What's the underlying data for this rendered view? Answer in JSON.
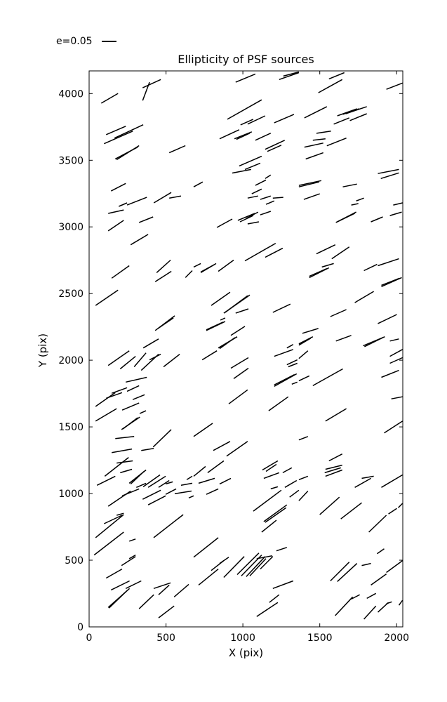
{
  "figure": {
    "background": "#ffffff"
  },
  "legend": {
    "label": "e=0.05"
  },
  "colors": {
    "line": "#000000",
    "frame": "#000000",
    "text": "#000000"
  },
  "chart_data": {
    "type": "line",
    "subtype": "whisker-segment-field",
    "title": "Ellipticity of PSF sources",
    "xlabel": "X (pix)",
    "ylabel": "Y (pix)",
    "xlim": [
      0,
      2040
    ],
    "ylim": [
      0,
      4170
    ],
    "xticks": [
      0,
      500,
      1000,
      1500,
      2000
    ],
    "yticks": [
      0,
      500,
      1000,
      1500,
      2000,
      2500,
      3000,
      3500,
      4000
    ],
    "grid": false,
    "legend_position": "upper-left-outside",
    "legend_scale_label": "e=0.05",
    "segments": [
      [
        79,
        3928,
        188,
        4001
      ],
      [
        348,
        3948,
        393,
        4085
      ],
      [
        348,
        4043,
        466,
        4105
      ],
      [
        111,
        3692,
        238,
        3755
      ],
      [
        165,
        3666,
        352,
        3766
      ],
      [
        97,
        3624,
        284,
        3718
      ],
      [
        179,
        3504,
        325,
        3609
      ],
      [
        170,
        3510,
        316,
        3598
      ],
      [
        521,
        3556,
        626,
        3609
      ],
      [
        143,
        3269,
        238,
        3326
      ],
      [
        193,
        3154,
        247,
        3180
      ],
      [
        247,
        3164,
        375,
        3222
      ],
      [
        421,
        3180,
        534,
        3258
      ],
      [
        521,
        3216,
        598,
        3232
      ],
      [
        953,
        4085,
        1081,
        4147
      ],
      [
        1236,
        4105,
        1364,
        4157
      ],
      [
        1263,
        4131,
        1364,
        4162
      ],
      [
        899,
        3807,
        1122,
        3953
      ],
      [
        985,
        3765,
        1067,
        3807
      ],
      [
        1031,
        3771,
        1145,
        3833
      ],
      [
        1204,
        3781,
        1332,
        3844
      ],
      [
        849,
        3661,
        976,
        3729
      ],
      [
        945,
        3661,
        1058,
        3713
      ],
      [
        958,
        3656,
        1045,
        3703
      ],
      [
        1081,
        3650,
        1181,
        3703
      ],
      [
        1145,
        3582,
        1272,
        3650
      ],
      [
        1159,
        3566,
        1250,
        3613
      ],
      [
        976,
        3457,
        1122,
        3530
      ],
      [
        1013,
        3431,
        1113,
        3478
      ],
      [
        931,
        3404,
        1054,
        3431
      ],
      [
        1145,
        3363,
        1181,
        3389
      ],
      [
        1081,
        3311,
        1150,
        3352
      ],
      [
        680,
        3300,
        739,
        3337
      ],
      [
        1058,
        3248,
        1122,
        3284
      ],
      [
        1031,
        3216,
        1099,
        3232
      ],
      [
        1113,
        3206,
        1181,
        3232
      ],
      [
        1195,
        3216,
        1263,
        3222
      ],
      [
        1150,
        3169,
        1204,
        3195
      ],
      [
        1560,
        4110,
        1660,
        4157
      ],
      [
        1491,
        4006,
        1646,
        4105
      ],
      [
        1933,
        4032,
        2038,
        4079
      ],
      [
        1400,
        3818,
        1546,
        3902
      ],
      [
        1614,
        3833,
        1742,
        3886
      ],
      [
        1669,
        3849,
        1806,
        3902
      ],
      [
        1650,
        3844,
        1755,
        3886
      ],
      [
        1591,
        3771,
        1692,
        3818
      ],
      [
        1696,
        3797,
        1806,
        3849
      ],
      [
        1478,
        3702,
        1573,
        3718
      ],
      [
        1455,
        3650,
        1537,
        3661
      ],
      [
        1400,
        3598,
        1523,
        3629
      ],
      [
        1546,
        3608,
        1673,
        3666
      ],
      [
        1409,
        3509,
        1523,
        3556
      ],
      [
        1878,
        3400,
        2015,
        3431
      ],
      [
        1897,
        3363,
        2015,
        3405
      ],
      [
        1364,
        3311,
        1510,
        3347
      ],
      [
        1364,
        3300,
        1496,
        3337
      ],
      [
        1650,
        3300,
        1742,
        3321
      ],
      [
        1396,
        3206,
        1500,
        3248
      ],
      [
        1737,
        3195,
        1787,
        3216
      ],
      [
        1705,
        3164,
        1751,
        3175
      ],
      [
        1978,
        3164,
        2038,
        3180
      ],
      [
        124,
        3101,
        225,
        3127
      ],
      [
        325,
        3033,
        416,
        3075
      ],
      [
        124,
        2970,
        225,
        3049
      ],
      [
        270,
        2866,
        384,
        2944
      ],
      [
        147,
        2615,
        261,
        2709
      ],
      [
        439,
        2657,
        530,
        2751
      ],
      [
        430,
        2589,
        535,
        2667
      ],
      [
        626,
        2620,
        671,
        2672
      ],
      [
        42,
        2411,
        188,
        2526
      ],
      [
        430,
        2223,
        557,
        2333
      ],
      [
        448,
        2238,
        548,
        2317
      ],
      [
        352,
        2092,
        452,
        2160
      ],
      [
        831,
        2996,
        931,
        3059
      ],
      [
        967,
        3049,
        1077,
        3101
      ],
      [
        981,
        3038,
        1068,
        3086
      ],
      [
        1022,
        3064,
        1099,
        3111
      ],
      [
        1031,
        3022,
        1104,
        3038
      ],
      [
        1113,
        3090,
        1181,
        3117
      ],
      [
        1013,
        2745,
        1213,
        2877
      ],
      [
        1145,
        2772,
        1259,
        2840
      ],
      [
        680,
        2699,
        726,
        2725
      ],
      [
        726,
        2657,
        826,
        2725
      ],
      [
        726,
        2662,
        817,
        2719
      ],
      [
        840,
        2667,
        940,
        2751
      ],
      [
        794,
        2411,
        917,
        2510
      ],
      [
        876,
        2353,
        1045,
        2489
      ],
      [
        885,
        2359,
        1031,
        2484
      ],
      [
        953,
        2353,
        1036,
        2385
      ],
      [
        1195,
        2359,
        1309,
        2421
      ],
      [
        854,
        2301,
        885,
        2317
      ],
      [
        762,
        2223,
        885,
        2291
      ],
      [
        762,
        2228,
        871,
        2286
      ],
      [
        922,
        2186,
        1013,
        2254
      ],
      [
        840,
        2092,
        963,
        2176
      ],
      [
        849,
        2087,
        949,
        2170
      ],
      [
        1286,
        2092,
        1327,
        2118
      ],
      [
        1605,
        3033,
        1737,
        3111
      ],
      [
        1614,
        3038,
        1728,
        3101
      ],
      [
        1833,
        3038,
        1910,
        3075
      ],
      [
        1956,
        3085,
        2033,
        3111
      ],
      [
        1478,
        2798,
        1601,
        2866
      ],
      [
        1578,
        2761,
        1692,
        2850
      ],
      [
        1514,
        2699,
        1591,
        2725
      ],
      [
        1432,
        2620,
        1560,
        2693
      ],
      [
        1432,
        2630,
        1546,
        2688
      ],
      [
        1787,
        2672,
        1873,
        2719
      ],
      [
        1878,
        2709,
        2015,
        2761
      ],
      [
        1901,
        2552,
        2033,
        2620
      ],
      [
        1901,
        2562,
        2019,
        2615
      ],
      [
        1728,
        2432,
        1851,
        2516
      ],
      [
        1569,
        2327,
        1673,
        2380
      ],
      [
        1878,
        2275,
        2001,
        2343
      ],
      [
        1387,
        2202,
        1491,
        2238
      ],
      [
        1364,
        2123,
        1455,
        2176
      ],
      [
        1364,
        2113,
        1441,
        2165
      ],
      [
        1605,
        2144,
        1705,
        2186
      ],
      [
        1782,
        2108,
        1923,
        2176
      ],
      [
        1791,
        2102,
        1910,
        2170
      ],
      [
        1956,
        2144,
        2015,
        2160
      ],
      [
        124,
        1961,
        261,
        2071
      ],
      [
        202,
        1935,
        302,
        2029
      ],
      [
        293,
        1951,
        370,
        2055
      ],
      [
        339,
        1924,
        452,
        2045
      ],
      [
        393,
        2003,
        466,
        2045
      ],
      [
        484,
        1951,
        589,
        2045
      ],
      [
        238,
        1836,
        375,
        1872
      ],
      [
        147,
        1752,
        247,
        1794
      ],
      [
        247,
        1767,
        325,
        1809
      ],
      [
        42,
        1653,
        170,
        1757
      ],
      [
        111,
        1715,
        214,
        1757
      ],
      [
        284,
        1705,
        361,
        1741
      ],
      [
        215,
        1626,
        325,
        1679
      ],
      [
        42,
        1543,
        179,
        1637
      ],
      [
        329,
        1600,
        370,
        1621
      ],
      [
        211,
        1480,
        330,
        1574
      ],
      [
        220,
        1485,
        316,
        1569
      ],
      [
        170,
        1412,
        293,
        1428
      ],
      [
        416,
        1349,
        534,
        1480
      ],
      [
        147,
        1307,
        279,
        1334
      ],
      [
        339,
        1323,
        421,
        1339
      ],
      [
        179,
        1229,
        284,
        1245
      ],
      [
        102,
        1130,
        257,
        1271
      ],
      [
        202,
        1156,
        279,
        1182
      ],
      [
        51,
        1062,
        170,
        1130
      ],
      [
        261,
        1077,
        370,
        1177
      ],
      [
        270,
        1072,
        357,
        1166
      ],
      [
        307,
        1046,
        370,
        1077
      ],
      [
        352,
        1051,
        461,
        1140
      ],
      [
        384,
        1046,
        498,
        1130
      ],
      [
        452,
        1046,
        521,
        1098
      ],
      [
        498,
        1072,
        544,
        1088
      ],
      [
        598,
        1062,
        671,
        1077
      ],
      [
        635,
        1104,
        671,
        1130
      ],
      [
        735,
        2003,
        831,
        2071
      ],
      [
        922,
        1940,
        1036,
        2019
      ],
      [
        940,
        1862,
        1036,
        1940
      ],
      [
        1204,
        2029,
        1327,
        2081
      ],
      [
        1286,
        1966,
        1354,
        2003
      ],
      [
        1295,
        1951,
        1354,
        1977
      ],
      [
        1204,
        1804,
        1350,
        1898
      ],
      [
        1204,
        1815,
        1336,
        1893
      ],
      [
        1318,
        1820,
        1354,
        1836
      ],
      [
        908,
        1673,
        1031,
        1778
      ],
      [
        1168,
        1621,
        1295,
        1726
      ],
      [
        680,
        1428,
        803,
        1527
      ],
      [
        808,
        1323,
        917,
        1391
      ],
      [
        894,
        1281,
        1031,
        1391
      ],
      [
        680,
        1130,
        757,
        1203
      ],
      [
        771,
        1156,
        876,
        1245
      ],
      [
        712,
        1077,
        817,
        1114
      ],
      [
        849,
        1072,
        922,
        1114
      ],
      [
        1127,
        1177,
        1227,
        1245
      ],
      [
        1150,
        1166,
        1218,
        1219
      ],
      [
        1136,
        1114,
        1236,
        1156
      ],
      [
        1259,
        1156,
        1318,
        1193
      ],
      [
        1181,
        1035,
        1227,
        1051
      ],
      [
        1273,
        1046,
        1350,
        1098
      ],
      [
        1364,
        2013,
        1423,
        2071
      ],
      [
        1956,
        2029,
        2038,
        2081
      ],
      [
        1956,
        1977,
        2038,
        2019
      ],
      [
        1364,
        1846,
        1432,
        1883
      ],
      [
        1455,
        1809,
        1650,
        1935
      ],
      [
        1901,
        1872,
        2015,
        1924
      ],
      [
        1965,
        1710,
        2038,
        1726
      ],
      [
        1537,
        1543,
        1673,
        1637
      ],
      [
        1364,
        1402,
        1423,
        1428
      ],
      [
        1919,
        1454,
        2038,
        1543
      ],
      [
        1560,
        1245,
        1646,
        1297
      ],
      [
        1537,
        1182,
        1646,
        1213
      ],
      [
        1532,
        1156,
        1637,
        1193
      ],
      [
        1537,
        1130,
        1646,
        1177
      ],
      [
        1364,
        1104,
        1423,
        1130
      ],
      [
        1773,
        1114,
        1851,
        1130
      ],
      [
        1728,
        1046,
        1833,
        1114
      ],
      [
        1901,
        1046,
        2038,
        1140
      ],
      [
        124,
        905,
        270,
        1019
      ],
      [
        215,
        983,
        325,
        1035
      ],
      [
        348,
        957,
        466,
        1025
      ],
      [
        384,
        915,
        498,
        983
      ],
      [
        498,
        994,
        566,
        1035
      ],
      [
        557,
        999,
        666,
        1019
      ],
      [
        648,
        967,
        680,
        983
      ],
      [
        179,
        837,
        225,
        852
      ],
      [
        97,
        774,
        214,
        837
      ],
      [
        42,
        669,
        225,
        842
      ],
      [
        33,
        539,
        225,
        711
      ],
      [
        261,
        643,
        302,
        659
      ],
      [
        420,
        669,
        612,
        842
      ],
      [
        261,
        512,
        302,
        539
      ],
      [
        211,
        460,
        302,
        528
      ],
      [
        111,
        366,
        214,
        434
      ],
      [
        143,
        277,
        263,
        345
      ],
      [
        238,
        288,
        339,
        345
      ],
      [
        124,
        146,
        263,
        288
      ],
      [
        129,
        141,
        247,
        272
      ],
      [
        325,
        136,
        421,
        241
      ],
      [
        420,
        288,
        530,
        330
      ],
      [
        452,
        241,
        521,
        314
      ],
      [
        553,
        225,
        648,
        319
      ],
      [
        452,
        68,
        553,
        157
      ],
      [
        762,
        994,
        840,
        1035
      ],
      [
        1068,
        868,
        1250,
        1025
      ],
      [
        1304,
        973,
        1364,
        1025
      ],
      [
        1136,
        790,
        1286,
        915
      ],
      [
        1145,
        784,
        1281,
        894
      ],
      [
        1122,
        711,
        1218,
        800
      ],
      [
        680,
        523,
        840,
        669
      ],
      [
        849,
        476,
        908,
        523
      ],
      [
        794,
        423,
        876,
        497
      ],
      [
        712,
        314,
        840,
        434
      ],
      [
        876,
        371,
        1009,
        528
      ],
      [
        963,
        392,
        1104,
        554
      ],
      [
        990,
        382,
        1122,
        539
      ],
      [
        1022,
        377,
        1145,
        528
      ],
      [
        1045,
        382,
        1150,
        512
      ],
      [
        1090,
        512,
        1190,
        533
      ],
      [
        1113,
        434,
        1195,
        528
      ],
      [
        1218,
        570,
        1286,
        596
      ],
      [
        1195,
        288,
        1327,
        345
      ],
      [
        1172,
        183,
        1236,
        241
      ],
      [
        1090,
        78,
        1227,
        183
      ],
      [
        1364,
        946,
        1423,
        1019
      ],
      [
        1500,
        842,
        1628,
        973
      ],
      [
        1637,
        810,
        1773,
        931
      ],
      [
        1819,
        711,
        1933,
        837
      ],
      [
        1947,
        847,
        2001,
        889
      ],
      [
        2011,
        894,
        2038,
        926
      ],
      [
        1873,
        549,
        1919,
        586
      ],
      [
        1569,
        345,
        1692,
        486
      ],
      [
        1614,
        340,
        1742,
        476
      ],
      [
        1773,
        460,
        1833,
        476
      ],
      [
        1933,
        408,
        2038,
        497
      ],
      [
        1833,
        314,
        1933,
        397
      ],
      [
        1705,
        209,
        1760,
        241
      ],
      [
        1600,
        84,
        1714,
        225
      ],
      [
        1806,
        214,
        1865,
        251
      ],
      [
        1787,
        58,
        1865,
        157
      ],
      [
        1878,
        110,
        1947,
        183
      ],
      [
        1933,
        173,
        1969,
        188
      ],
      [
        2015,
        162,
        2038,
        199
      ]
    ]
  }
}
